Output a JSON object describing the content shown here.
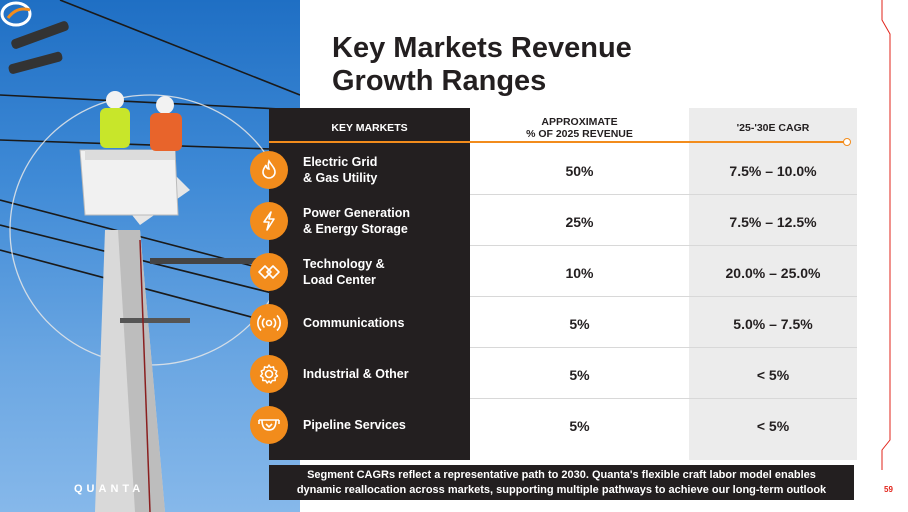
{
  "title": {
    "line1": "Key Markets Revenue",
    "line2": "Growth Ranges"
  },
  "table": {
    "headers": {
      "markets": "KEY MARKETS",
      "revenue_line1": "APPROXIMATE",
      "revenue_line2": "% OF 2025 REVENUE",
      "cagr": "'25-'30E CAGR"
    },
    "rows": [
      {
        "icon": "flame-icon",
        "label1": "Electric Grid",
        "label2": "& Gas Utility",
        "revenue": "50%",
        "cagr": "7.5% – 10.0%"
      },
      {
        "icon": "lightning-icon",
        "label1": "Power Generation",
        "label2": "& Energy Storage",
        "revenue": "25%",
        "cagr": "7.5% – 12.5%"
      },
      {
        "icon": "chevrons-icon",
        "label1": "Technology &",
        "label2": "Load Center",
        "revenue": "10%",
        "cagr": "20.0% – 25.0%"
      },
      {
        "icon": "broadcast-icon",
        "label1": "Communications",
        "label2": "",
        "revenue": "5%",
        "cagr": "5.0% – 7.5%"
      },
      {
        "icon": "gear-icon",
        "label1": "Industrial & Other",
        "label2": "",
        "revenue": "5%",
        "cagr": "< 5%"
      },
      {
        "icon": "pipeline-icon",
        "label1": "Pipeline Services",
        "label2": "",
        "revenue": "5%",
        "cagr": "< 5%"
      }
    ]
  },
  "footnote": {
    "line1": "Segment CAGRs reflect a representative path to 2030. Quanta's flexible craft labor model enables",
    "line2": "dynamic reallocation across markets, supporting multiple pathways to achieve our long-term outlook"
  },
  "logo": {
    "text": "QUANTA"
  },
  "page_number": "59",
  "colors": {
    "accent": "#f28c1c",
    "dark": "#231f20",
    "grey": "#ececec",
    "page_red": "#e2231a"
  }
}
